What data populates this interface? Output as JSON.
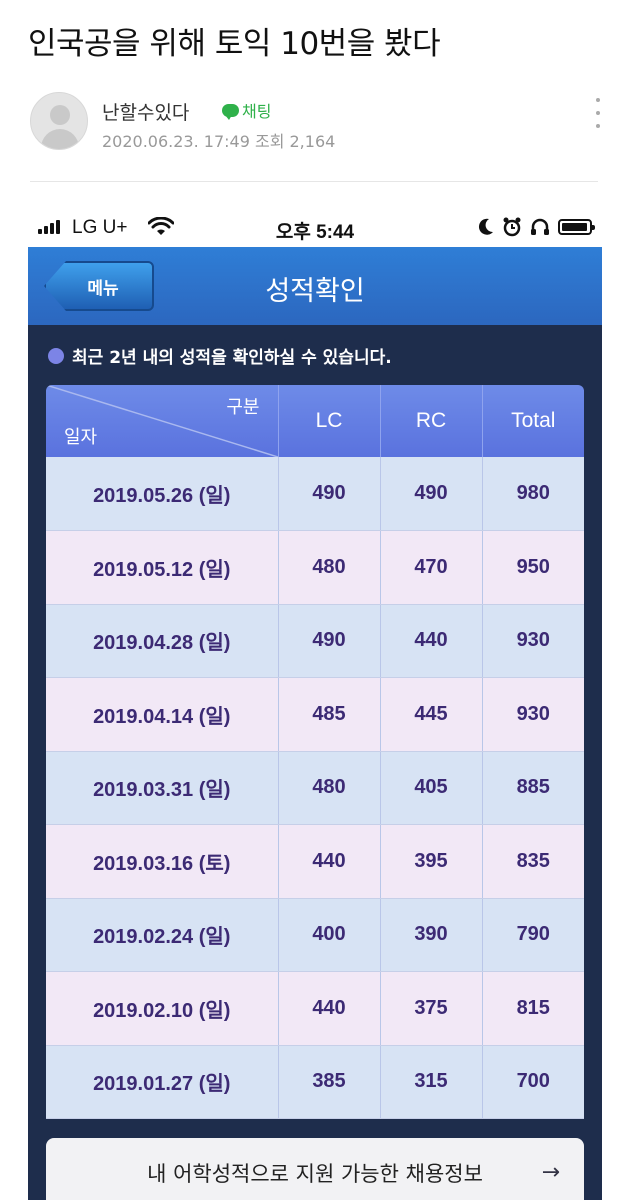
{
  "post": {
    "title": "인국공을 위해 토익 10번을 봤다",
    "author": "난할수있다",
    "chat_label": "채팅",
    "meta": "2020.06.23. 17:49 조회 2,164"
  },
  "status_bar": {
    "carrier": "LG U+",
    "time": "오후 5:44",
    "battery_level": 0.95
  },
  "app": {
    "menu_label": "메뉴",
    "title": "성적확인",
    "notice": "최근 2년 내의 성적을 확인하실 수 있습니다."
  },
  "table": {
    "header_corner_top": "구분",
    "header_corner_bottom": "일자",
    "columns": [
      "LC",
      "RC",
      "Total"
    ],
    "rows": [
      {
        "date": "2019.05.26 (일)",
        "lc": "490",
        "rc": "490",
        "total": "980"
      },
      {
        "date": "2019.05.12 (일)",
        "lc": "480",
        "rc": "470",
        "total": "950"
      },
      {
        "date": "2019.04.28 (일)",
        "lc": "490",
        "rc": "440",
        "total": "930"
      },
      {
        "date": "2019.04.14 (일)",
        "lc": "485",
        "rc": "445",
        "total": "930"
      },
      {
        "date": "2019.03.31 (일)",
        "lc": "480",
        "rc": "405",
        "total": "885"
      },
      {
        "date": "2019.03.16 (토)",
        "lc": "440",
        "rc": "395",
        "total": "835"
      },
      {
        "date": "2019.02.24 (일)",
        "lc": "400",
        "rc": "390",
        "total": "790"
      },
      {
        "date": "2019.02.10 (일)",
        "lc": "440",
        "rc": "375",
        "total": "815"
      },
      {
        "date": "2019.01.27 (일)",
        "lc": "385",
        "rc": "315",
        "total": "700"
      }
    ]
  },
  "jobs_button": {
    "label": "내 어학성적으로 지원 가능한 채용정보",
    "arrow": "→"
  },
  "colors": {
    "header_blue": "#2f7ed6",
    "table_header": "#6e8be8",
    "score_text": "#3c2a74",
    "chat_green": "#2fb14a"
  }
}
